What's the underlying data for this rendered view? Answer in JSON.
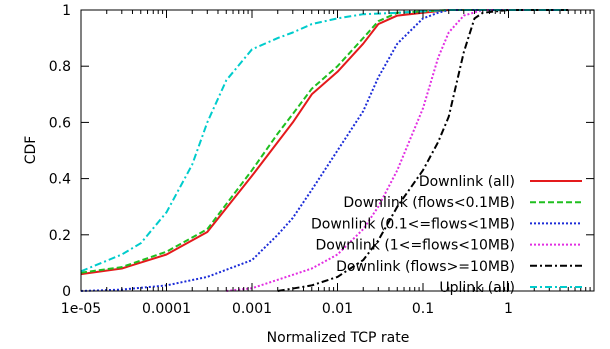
{
  "chart_data": {
    "type": "line",
    "title": "",
    "xlabel": "Normalized TCP rate",
    "ylabel": "CDF",
    "xscale": "log",
    "xlim": [
      1e-05,
      10
    ],
    "ylim": [
      0,
      1
    ],
    "x_ticks": [
      {
        "value": 1e-05,
        "label": "1e-05"
      },
      {
        "value": 0.0001,
        "label": "0.0001"
      },
      {
        "value": 0.001,
        "label": "0.001"
      },
      {
        "value": 0.01,
        "label": "0.01"
      },
      {
        "value": 0.1,
        "label": "0.1"
      },
      {
        "value": 1,
        "label": "1"
      }
    ],
    "y_ticks": [
      {
        "value": 0,
        "label": "0"
      },
      {
        "value": 0.2,
        "label": "0.2"
      },
      {
        "value": 0.4,
        "label": "0.4"
      },
      {
        "value": 0.6,
        "label": "0.6"
      },
      {
        "value": 0.8,
        "label": "0.8"
      },
      {
        "value": 1,
        "label": "1"
      }
    ],
    "grid": false,
    "legend_position": "bottom-right",
    "series": [
      {
        "name": "Downlink (all)",
        "color": "#e41a1c",
        "dash": "solid",
        "x": [
          1e-05,
          3e-05,
          0.0001,
          0.0003,
          0.001,
          0.002,
          0.003,
          0.005,
          0.01,
          0.02,
          0.03,
          0.05,
          0.1,
          0.2,
          0.5,
          1,
          5
        ],
        "y": [
          0.06,
          0.08,
          0.13,
          0.21,
          0.41,
          0.53,
          0.6,
          0.7,
          0.78,
          0.88,
          0.95,
          0.98,
          0.99,
          1.0,
          1.0,
          1.0,
          1.0
        ]
      },
      {
        "name": "Downlink (flows<0.1MB)",
        "color": "#1fbf1f",
        "dash": "dashed",
        "x": [
          1e-05,
          3e-05,
          0.0001,
          0.0003,
          0.001,
          0.002,
          0.003,
          0.005,
          0.01,
          0.02,
          0.03,
          0.05,
          0.1,
          0.2,
          0.5,
          1,
          5
        ],
        "y": [
          0.065,
          0.085,
          0.14,
          0.22,
          0.43,
          0.56,
          0.63,
          0.72,
          0.8,
          0.9,
          0.96,
          0.99,
          0.995,
          1.0,
          1.0,
          1.0,
          1.0
        ]
      },
      {
        "name": "Downlink (0.1<=flows<1MB)",
        "color": "#1c2cd8",
        "dash": "dotted",
        "x": [
          1e-05,
          3e-05,
          0.0001,
          0.0003,
          0.001,
          0.002,
          0.003,
          0.005,
          0.01,
          0.02,
          0.03,
          0.05,
          0.1,
          0.15,
          0.2,
          0.5,
          1,
          5
        ],
        "y": [
          0.0,
          0.005,
          0.02,
          0.05,
          0.11,
          0.2,
          0.26,
          0.36,
          0.5,
          0.64,
          0.76,
          0.88,
          0.97,
          0.99,
          1.0,
          1.0,
          1.0,
          1.0
        ]
      },
      {
        "name": "Downlink (1<=flows<10MB)",
        "color": "#e22ee2",
        "dash": "dotted",
        "x": [
          0.0005,
          0.001,
          0.002,
          0.005,
          0.01,
          0.02,
          0.03,
          0.05,
          0.1,
          0.15,
          0.2,
          0.3,
          0.5,
          1,
          5
        ],
        "y": [
          0.0,
          0.01,
          0.04,
          0.08,
          0.13,
          0.22,
          0.3,
          0.43,
          0.65,
          0.83,
          0.92,
          0.98,
          1.0,
          1.0,
          1.0
        ]
      },
      {
        "name": "Downlink (flows>=10MB)",
        "color": "#000000",
        "dash": "dash-dot",
        "x": [
          0.002,
          0.005,
          0.01,
          0.02,
          0.03,
          0.05,
          0.1,
          0.15,
          0.2,
          0.3,
          0.4,
          0.5,
          1,
          5
        ],
        "y": [
          0.0,
          0.02,
          0.05,
          0.11,
          0.18,
          0.3,
          0.43,
          0.53,
          0.62,
          0.85,
          0.97,
          0.99,
          1.0,
          1.0
        ]
      },
      {
        "name": "Uplink (all)",
        "color": "#00cccc",
        "dash": "dash-dot",
        "x": [
          1e-05,
          3e-05,
          5e-05,
          0.0001,
          0.0002,
          0.0003,
          0.0005,
          0.001,
          0.002,
          0.003,
          0.005,
          0.01,
          0.02,
          0.05,
          0.1,
          0.2,
          1,
          5
        ],
        "y": [
          0.07,
          0.13,
          0.17,
          0.28,
          0.45,
          0.6,
          0.75,
          0.86,
          0.9,
          0.92,
          0.95,
          0.97,
          0.985,
          0.99,
          0.995,
          1.0,
          1.0,
          1.0
        ]
      }
    ]
  }
}
